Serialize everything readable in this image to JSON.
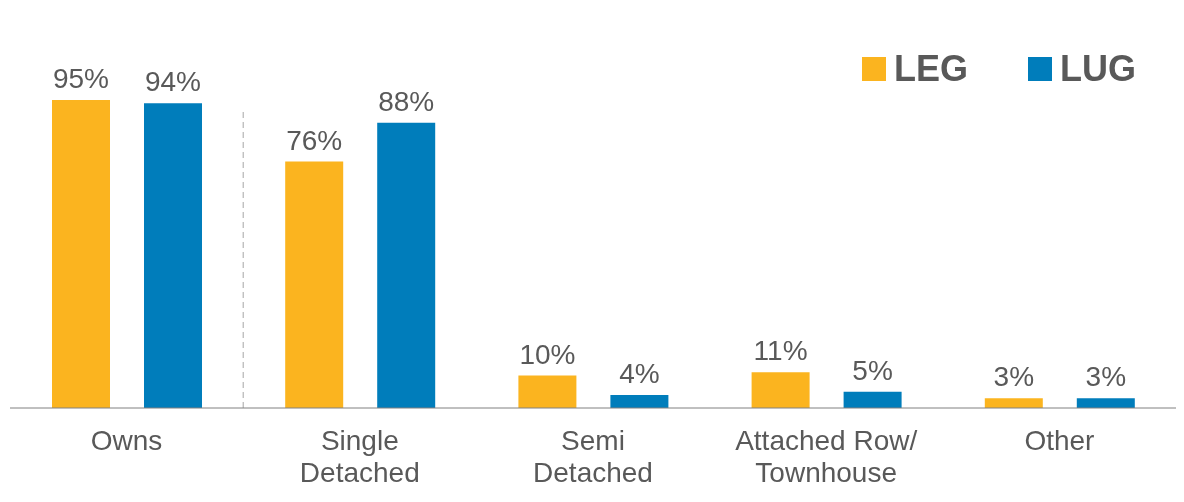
{
  "chart_data": {
    "type": "bar",
    "categories": [
      "Owns",
      "Single Detached",
      "Semi Detached",
      "Attached Row/ Townhouse",
      "Other"
    ],
    "series": [
      {
        "name": "LEG",
        "color": "#fbb41f",
        "values": [
          95,
          76,
          10,
          11,
          3
        ],
        "value_labels": [
          "95%",
          "76%",
          "10%",
          "11%",
          "3%"
        ]
      },
      {
        "name": "LUG",
        "color": "#007dbb",
        "values": [
          94,
          88,
          4,
          5,
          3
        ],
        "value_labels": [
          "94%",
          "88%",
          "4%",
          "5%",
          "3%"
        ]
      }
    ],
    "legend": "top right",
    "grid": false
  }
}
